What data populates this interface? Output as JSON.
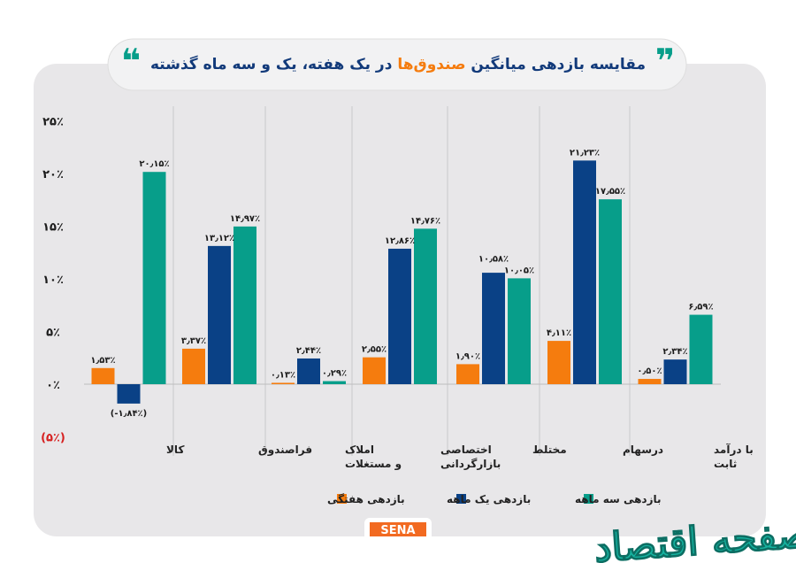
{
  "title": {
    "part_blue_start": "مقایسه بازدهی میانگین ",
    "part_orange": "صندوق‌ها",
    "part_blue_end": " در یک هفته، یک و سه ماه گذشته",
    "quote_open": "❞",
    "quote_close": "❝"
  },
  "colors": {
    "weekly": "#f57c0e",
    "monthly": "#0a4186",
    "three_month": "#079e8a",
    "panel": "#e8e7e9",
    "title_blue": "#123a7a",
    "negative_label": "#d62020",
    "quote": "#079e8a"
  },
  "chart_data": {
    "type": "bar",
    "title": "مقایسه بازدهی میانگین صندوق‌ها در یک هفته، یک و سه ماه گذشته",
    "ylim": [
      -5,
      25
    ],
    "yticks": [
      {
        "value": 25,
        "label": "۲۵٪"
      },
      {
        "value": 20,
        "label": "۲۰٪"
      },
      {
        "value": 15,
        "label": "۱۵٪"
      },
      {
        "value": 10,
        "label": "۱۰٪"
      },
      {
        "value": 5,
        "label": "۵٪"
      },
      {
        "value": 0,
        "label": "۰٪"
      },
      {
        "value": -5,
        "label": "(۵٪)"
      }
    ],
    "grid": false,
    "legend_position": "bottom",
    "categories": [
      "کالا",
      "فراصندوق",
      "املاک و مستغلات",
      "اختصاصی بازارگردانی",
      "مختلط",
      "درسهام",
      "با درآمد ثابت"
    ],
    "series": [
      {
        "name": "بازدهی هفتگی",
        "color": "#f57c0e",
        "values": [
          1.53,
          3.37,
          0.13,
          2.55,
          1.9,
          4.11,
          0.5
        ],
        "labels": [
          "۱٫۵۳٪",
          "۳٫۳۷٪",
          "۰٫۱۳٪",
          "۲٫۵۵٪",
          "۱٫۹۰٪",
          "۴٫۱۱٪",
          "۰٫۵۰٪"
        ]
      },
      {
        "name": "بازدهی یک ماهه",
        "color": "#0a4186",
        "values": [
          -1.84,
          13.12,
          2.44,
          12.86,
          10.58,
          21.23,
          2.34
        ],
        "labels": [
          "(-۱٫۸۴٪)",
          "۱۳٫۱۲٪",
          "۲٫۴۴٪",
          "۱۲٫۸۶٪",
          "۱۰٫۵۸٪",
          "۲۱٫۲۳٪",
          "۲٫۳۴٪"
        ]
      },
      {
        "name": "بازدهی سه ماهه",
        "color": "#079e8a",
        "values": [
          20.15,
          14.97,
          0.29,
          14.76,
          10.05,
          17.55,
          6.59
        ],
        "labels": [
          "۲۰٫۱۵٪",
          "۱۴٫۹۷٪",
          "۰٫۲۹٪",
          "۱۴٫۷۶٪",
          "۱۰٫۰۵٪",
          "۱۷٫۵۵٪",
          "۶٫۵۹٪"
        ]
      }
    ]
  },
  "legend": [
    "بازدهی سه ماهه",
    "بازدهی یک ماهه",
    "بازدهی هفتگی"
  ],
  "source_logo": "SENA",
  "watermark": "صفحه اقتصاد"
}
